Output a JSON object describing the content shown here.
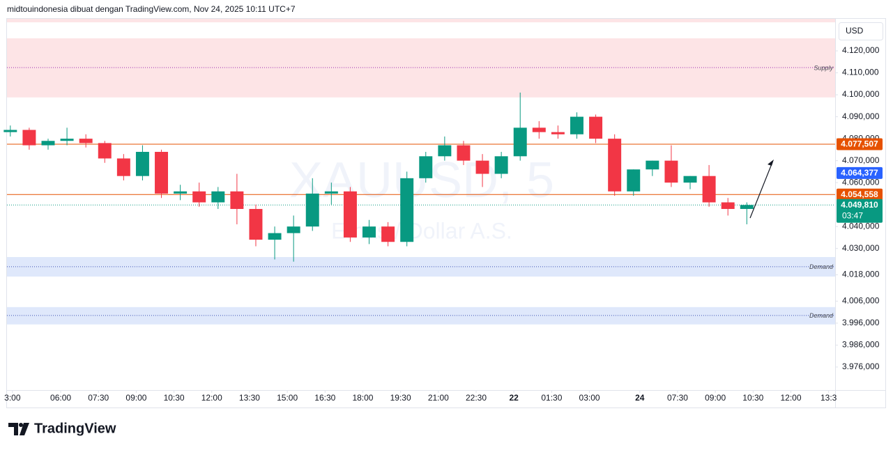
{
  "header": "midtouindonesia dibuat dengan TradingView.com, Nov 24, 2025 10:11 UTC+7",
  "branding": "TradingView",
  "chart_data": {
    "type": "candlestick",
    "currency": "USD",
    "watermark": {
      "symbol": "XAUUSD, 5",
      "description": "Emas / Dollar A.S."
    },
    "up_color": "#089981",
    "down_color": "#f23645",
    "ylim": [
      3965.5,
      4134.6
    ],
    "yticks": [
      {
        "value": 4120,
        "label": "4.120,000"
      },
      {
        "value": 4110,
        "label": "4.110,000"
      },
      {
        "value": 4100,
        "label": "4.100,000"
      },
      {
        "value": 4090,
        "label": "4.090,000"
      },
      {
        "value": 4080,
        "label": "4.080,000"
      },
      {
        "value": 4070,
        "label": "4.070,000"
      },
      {
        "value": 4060,
        "label": "4.060,000"
      },
      {
        "value": 4040,
        "label": "4.040,000"
      },
      {
        "value": 4030,
        "label": "4.030,000"
      },
      {
        "value": 4018,
        "label": "4.018,000"
      },
      {
        "value": 4006,
        "label": "4.006,000"
      },
      {
        "value": 3996,
        "label": "3.996,000"
      },
      {
        "value": 3986,
        "label": "3.986,000"
      },
      {
        "value": 3976,
        "label": "3.976,000"
      }
    ],
    "xlim": [
      -25.6,
      369.1
    ],
    "xticks": [
      {
        "value": -23,
        "label": "3:00"
      },
      {
        "value": 0,
        "label": "06:00"
      },
      {
        "value": 18,
        "label": "07:30"
      },
      {
        "value": 36,
        "label": "09:00"
      },
      {
        "value": 54,
        "label": "10:30"
      },
      {
        "value": 72,
        "label": "12:00"
      },
      {
        "value": 90,
        "label": "13:30"
      },
      {
        "value": 108,
        "label": "15:00"
      },
      {
        "value": 126,
        "label": "16:30"
      },
      {
        "value": 144,
        "label": "18:00"
      },
      {
        "value": 162,
        "label": "19:30"
      },
      {
        "value": 180,
        "label": "21:00"
      },
      {
        "value": 198,
        "label": "22:30"
      },
      {
        "value": 216,
        "label": "22"
      },
      {
        "value": 234,
        "label": "01:30"
      },
      {
        "value": 252,
        "label": "03:00"
      },
      {
        "value": 276,
        "label": "24"
      },
      {
        "value": 294,
        "label": "07:30"
      },
      {
        "value": 312,
        "label": "09:00"
      },
      {
        "value": 330,
        "label": "10:30"
      },
      {
        "value": 348,
        "label": "12:00"
      },
      {
        "value": 366,
        "label": "13:3"
      }
    ],
    "x": [
      -24,
      -15,
      -6,
      3,
      12,
      21,
      30,
      39,
      48,
      57,
      66,
      75,
      84,
      93,
      102,
      111,
      120,
      129,
      138,
      147,
      156,
      165,
      174,
      183,
      192,
      201,
      210,
      219,
      228,
      237,
      246,
      255,
      264,
      273,
      282,
      291,
      300,
      309,
      318,
      327
    ],
    "open": [
      4083,
      4084,
      4077,
      4079,
      4080,
      4078,
      4071,
      4063,
      4074,
      4055,
      4056,
      4051,
      4056,
      4048,
      4034,
      4037,
      4040,
      4055,
      4056,
      4035,
      4040,
      4033,
      4062,
      4072,
      4077,
      4070,
      4064,
      4072,
      4085,
      4083,
      4082,
      4090,
      4080,
      4056,
      4066,
      4070,
      4060,
      4063,
      4051,
      4048
    ],
    "high": [
      4086,
      4085,
      4080,
      4085,
      4082,
      4079,
      4073,
      4077,
      4075,
      4059,
      4060,
      4058,
      4064,
      4050,
      4040,
      4045,
      4062,
      4060,
      4058,
      4043,
      4042,
      4065,
      4074,
      4081,
      4079,
      4073,
      4074,
      4101,
      4088,
      4086,
      4092,
      4091,
      4082,
      4066,
      4070,
      4077,
      4063,
      4068,
      4053,
      4051
    ],
    "low": [
      4081,
      4075,
      4075,
      4077,
      4076,
      4069,
      4061,
      4061,
      4053,
      4052,
      4049,
      4048,
      4041,
      4031,
      4025,
      4024,
      4038,
      4050,
      4033,
      4032,
      4031,
      4031,
      4060,
      4070,
      4068,
      4058,
      4062,
      4070,
      4080,
      4080,
      4080,
      4078,
      4054,
      4054,
      4063,
      4058,
      4057,
      4049,
      4045,
      4041
    ],
    "close": [
      4084,
      4077,
      4079,
      4080,
      4078,
      4071,
      4063,
      4074,
      4055,
      4056,
      4051,
      4056,
      4048,
      4034,
      4037,
      4040,
      4055,
      4056,
      4035,
      4040,
      4033,
      4062,
      4072,
      4077,
      4070,
      4064,
      4072,
      4085,
      4083,
      4082,
      4090,
      4080,
      4056,
      4066,
      4070,
      4060,
      4063,
      4051,
      4048,
      4049.81
    ],
    "zones": [
      {
        "top": 4134.6,
        "bottom": 4133,
        "color": "#fde4e6"
      },
      {
        "top": 4125.7,
        "bottom": 4098.8,
        "line": 4112.4,
        "label": "Supply",
        "color": "#fde4e6",
        "line_color": "#9c27b0"
      },
      {
        "top": 4026.1,
        "bottom": 4017.2,
        "line": 4021.7,
        "label": "Demand",
        "color": "#dfe8fb",
        "line_color": "#3f51b5"
      },
      {
        "top": 4003.3,
        "bottom": 3995.4,
        "line": 3999.5,
        "label": "Demand",
        "color": "#dfe8fb",
        "line_color": "#3f51b5"
      }
    ],
    "levels": [
      {
        "value": 4077.507,
        "label": "4.077,507",
        "color": "#e65100",
        "line": "solid"
      },
      {
        "value": 4064.377,
        "label": "4.064,377",
        "color": "#2962ff"
      },
      {
        "value": 4054.558,
        "label": "4.054,558",
        "color": "#e65100",
        "line": "solid"
      },
      {
        "value": 4049.81,
        "label": "4.049,810",
        "countdown": "03:47",
        "color": "#089981",
        "line": "dotted"
      }
    ]
  }
}
